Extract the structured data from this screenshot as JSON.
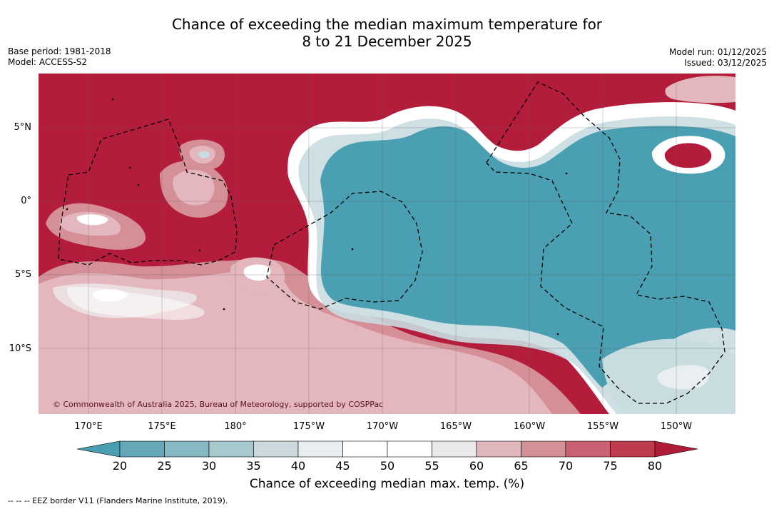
{
  "title": {
    "line1": "Chance of exceeding the median maximum temperature for",
    "line2": "8 to 21 December 2025"
  },
  "meta": {
    "base_period": "Base period: 1981-2018",
    "model": "Model: ACCESS-S2",
    "model_run": "Model run: 01/12/2025",
    "issued": "Issued: 03/12/2025"
  },
  "map": {
    "lat_labels": [
      "5°N",
      "0°",
      "5°S",
      "10°S"
    ],
    "lon_labels": [
      "170°E",
      "175°E",
      "180°",
      "175°W",
      "170°W",
      "165°W",
      "160°W",
      "155°W",
      "150°W"
    ],
    "copyright": "© Commonwealth of Australia 2025, Bureau of Meteorology, supported by COSPPac"
  },
  "colorbar": {
    "ticks": [
      "20",
      "25",
      "30",
      "35",
      "40",
      "45",
      "50",
      "55",
      "60",
      "65",
      "70",
      "75",
      "80"
    ],
    "title": "Chance of exceeding median max. temp. (%)",
    "colors": {
      "low_extend": "#4a9eb1",
      "bins": [
        "#65a8b7",
        "#86b9c4",
        "#a7c9cd",
        "#cbd9dc",
        "#e8eef1",
        "#ffffff",
        "#ffffff",
        "#ebe9ea",
        "#dfb7bd",
        "#d58f97",
        "#c86272",
        "#bd3c4e"
      ],
      "high_extend": "#b01c38"
    }
  },
  "legend": {
    "text": "--  --  -- EEZ border V11 (Flanders Marine Institute, 2019)."
  },
  "palette": {
    "hot": "#b31c3a",
    "cool": "#4aa0b2",
    "pink": "#e3b7bd",
    "pink2": "#d58f97",
    "blush": "#ecdfe1",
    "white": "#ffffff",
    "ice": "#c9dde1"
  }
}
